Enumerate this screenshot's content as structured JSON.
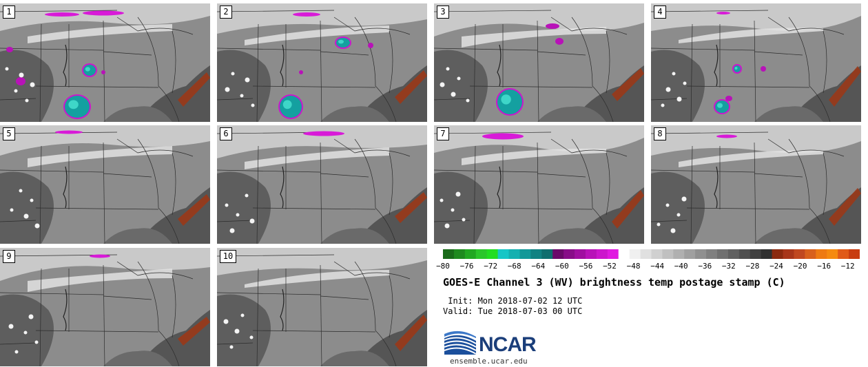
{
  "panels": [
    {
      "label": "1"
    },
    {
      "label": "2"
    },
    {
      "label": "3"
    },
    {
      "label": "4"
    },
    {
      "label": "5"
    },
    {
      "label": "6"
    },
    {
      "label": "7"
    },
    {
      "label": "8"
    },
    {
      "label": "9"
    },
    {
      "label": "10"
    }
  ],
  "colorbar": {
    "ticks": [
      "−80",
      "−76",
      "−72",
      "−68",
      "−64",
      "−60",
      "−56",
      "−52",
      "−48",
      "−44",
      "−40",
      "−36",
      "−32",
      "−28",
      "−24",
      "−20",
      "−16",
      "−12"
    ],
    "colors": [
      "#1a6b1a",
      "#1f8a1f",
      "#22a822",
      "#2bc62b",
      "#22dd22",
      "#16c6c6",
      "#14b0b0",
      "#129898",
      "#108282",
      "#0e6e6e",
      "#6a0a6a",
      "#880c88",
      "#a00ea0",
      "#b812b8",
      "#cc16cc",
      "#e01ae0",
      "#ffffff",
      "#f0f0f0",
      "#e0e0e0",
      "#d0d0d0",
      "#c0c0c0",
      "#b0b0b0",
      "#a0a0a0",
      "#909090",
      "#808080",
      "#707070",
      "#606060",
      "#505050",
      "#404040",
      "#303030",
      "#8b2a10",
      "#a8361a",
      "#c04820",
      "#d8601c",
      "#ee7a12",
      "#f58a10",
      "#e05a18",
      "#c83c10"
    ]
  },
  "title": "GOES-E Channel 3 (WV) brightness temp postage stamp (C)",
  "init": " Init: Mon 2018-07-02 12 UTC",
  "valid": "Valid: Tue 2018-07-03 00 UTC",
  "logo": {
    "text": "NCAR",
    "url": "ensemble.ucar.edu"
  }
}
